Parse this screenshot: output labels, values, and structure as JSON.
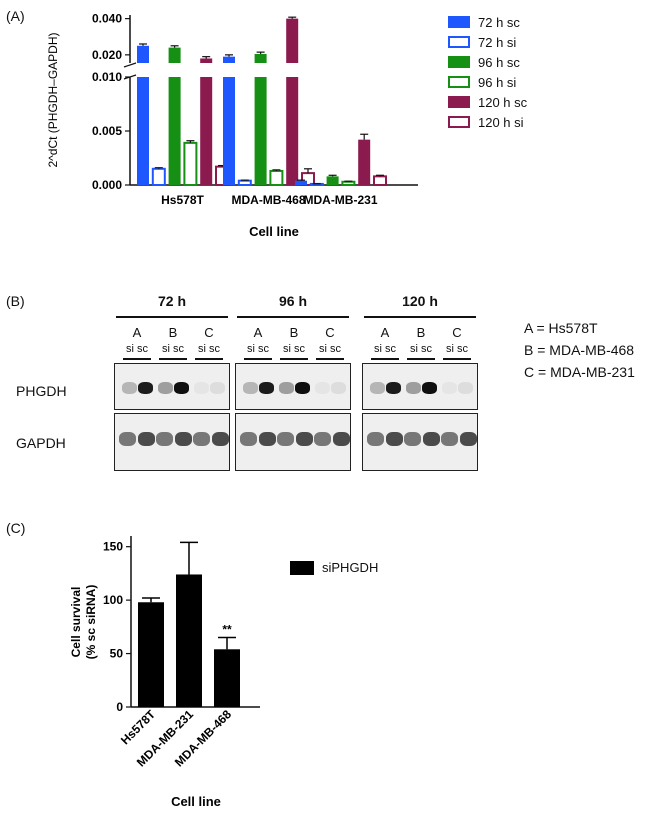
{
  "panel_a": {
    "label": "(A)",
    "ylabel": "2^dCt (PHGDH–GAPDH)",
    "xlabel": "Cell line",
    "upper_ticks": [
      "0.040",
      "0.020"
    ],
    "lower_ticks": [
      "0.010",
      "0.005",
      "0.000"
    ],
    "legend": [
      {
        "name": "72 h sc",
        "color": "#1f57ff",
        "filled": true
      },
      {
        "name": "72 h si",
        "color": "#1f57ff",
        "filled": false
      },
      {
        "name": "96 h sc",
        "color": "#159015",
        "filled": true
      },
      {
        "name": "96 h si",
        "color": "#159015",
        "filled": false
      },
      {
        "name": "120 h sc",
        "color": "#8b1a4f",
        "filled": true
      },
      {
        "name": "120 h si",
        "color": "#8b1a4f",
        "filled": false
      }
    ]
  },
  "panel_b": {
    "label": "(B)",
    "timepoints": [
      "72 h",
      "96 h",
      "120 h"
    ],
    "lanes": [
      "A",
      "B",
      "C"
    ],
    "lane_sub": "si sc",
    "rows": [
      "PHGDH",
      "GAPDH"
    ],
    "key": [
      "A = Hs578T",
      "B = MDA-MB-468",
      "C = MDA-MB-231"
    ]
  },
  "panel_c": {
    "label": "(C)",
    "ylabel_line1": "Cell survival",
    "ylabel_line2": "(% sc siRNA)",
    "xlabel": "Cell line",
    "legend": "siPHGDH",
    "significance": "**",
    "yticks": [
      "150",
      "100",
      "50",
      "0"
    ]
  },
  "chart_data": [
    {
      "type": "bar",
      "categories": [
        "Hs578T",
        "MDA-MB-468",
        "MDA-MB-231"
      ],
      "ylabel": "2^dCt (PHGDH–GAPDH)",
      "xlabel": "Cell line",
      "y_axis_break": true,
      "series": [
        {
          "name": "72 h sc",
          "values": [
            0.025,
            0.019,
            0.0004
          ],
          "errors": [
            0.001,
            0.001,
            5e-05
          ]
        },
        {
          "name": "72 h si",
          "values": [
            0.0015,
            0.0004,
            0.0001
          ],
          "errors": [
            0.0001,
            5e-05,
            2e-05
          ]
        },
        {
          "name": "96 h sc",
          "values": [
            0.024,
            0.0205,
            0.0008
          ],
          "errors": [
            0.001,
            0.001,
            0.0001
          ]
        },
        {
          "name": "96 h si",
          "values": [
            0.0039,
            0.0013,
            0.0003
          ],
          "errors": [
            0.0002,
            0.0001,
            5e-05
          ]
        },
        {
          "name": "120 h sc",
          "values": [
            0.018,
            0.04,
            0.0042
          ],
          "errors": [
            0.001,
            0.0008,
            0.0005
          ]
        },
        {
          "name": "120 h si",
          "values": [
            0.0017,
            0.0011,
            0.0008
          ],
          "errors": [
            0.0001,
            0.0004,
            0.0001
          ]
        }
      ]
    },
    {
      "type": "bar",
      "categories": [
        "Hs578T",
        "MDA-MB-231",
        "MDA-MB-468"
      ],
      "series": [
        {
          "name": "siPHGDH",
          "values": [
            98,
            124,
            54
          ],
          "errors": [
            4,
            30,
            11
          ]
        }
      ],
      "ylabel": "Cell survival (% sc siRNA)",
      "xlabel": "Cell line",
      "ylim": [
        0,
        160
      ],
      "annotations": [
        {
          "category": "MDA-MB-468",
          "text": "**"
        }
      ]
    }
  ]
}
